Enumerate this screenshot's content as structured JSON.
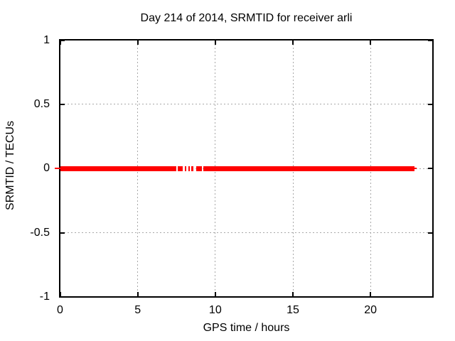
{
  "chart_data": {
    "type": "scatter",
    "title": "Day 214 of 2014, SRMTID for receiver arli",
    "xlabel": "GPS time / hours",
    "ylabel": "SRMTID / TECUs",
    "xlim": [
      0,
      24
    ],
    "ylim": [
      -1,
      1
    ],
    "x_ticks": [
      "0",
      "5",
      "10",
      "15",
      "20"
    ],
    "y_ticks": [
      "1",
      "0.5",
      "0",
      "-0.5",
      "-1"
    ],
    "grid": true,
    "legend": "none",
    "colors": {
      "background": "#ffffff",
      "border": "#000000",
      "grid": "#a8a8a8",
      "text": "#000000",
      "series": "#ff0000"
    },
    "series": [
      {
        "name": "SRMTID",
        "color": "#ff0000",
        "marker": "horizontal-dash",
        "y_value": 0,
        "x_segments_hours": [
          [
            0,
            7.47
          ],
          [
            7.6,
            7.92
          ],
          [
            8.02,
            8.15
          ],
          [
            8.25,
            8.38
          ],
          [
            8.47,
            8.61
          ],
          [
            8.79,
            9.16
          ],
          [
            9.25,
            22.85
          ]
        ]
      }
    ],
    "description": "Dense red markers along y=0 from hour 0 to ~22.85 with brief data gaps between ~7.5 and ~9.2 hours"
  }
}
